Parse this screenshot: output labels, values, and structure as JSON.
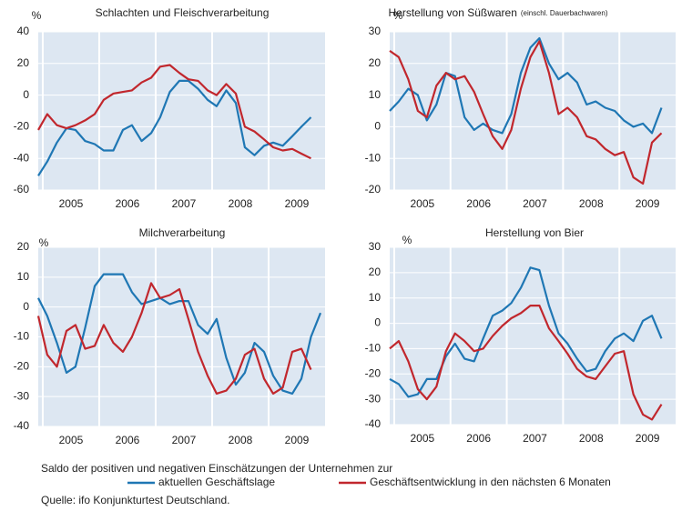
{
  "chart_data": [
    {
      "type": "line",
      "title": "Schlachten und Fleischverarbeitung",
      "y_label": "%",
      "categories": [
        "2005",
        "2006",
        "2007",
        "2008",
        "2009"
      ],
      "x": [
        2004.92,
        2005.08,
        2005.25,
        2005.42,
        2005.58,
        2005.75,
        2005.92,
        2006.08,
        2006.25,
        2006.42,
        2006.58,
        2006.75,
        2006.92,
        2007.08,
        2007.25,
        2007.42,
        2007.58,
        2007.75,
        2007.92,
        2008.08,
        2008.25,
        2008.42,
        2008.58,
        2008.75,
        2008.92,
        2009.08,
        2009.25,
        2009.42,
        2009.58,
        2009.75,
        2009.92
      ],
      "xlim": [
        2004.92,
        2010
      ],
      "ylim": [
        -60,
        40
      ],
      "yticks": [
        40,
        20,
        0,
        -20,
        -40,
        -60
      ],
      "series": [
        {
          "color": "#1f77b4",
          "values": [
            -51,
            -42,
            -30,
            -21,
            -22,
            -29,
            -31,
            -35,
            -35,
            -22,
            -19,
            -29,
            -24,
            -14,
            2,
            9,
            9,
            4,
            -3,
            -7,
            3,
            -5,
            -33,
            -38,
            -32,
            -30,
            -32,
            -26,
            -20,
            -14,
            null
          ]
        },
        {
          "color": "#c1272d",
          "values": [
            -22,
            -12,
            -19,
            -21,
            -19,
            -16,
            -12,
            -3,
            1,
            2,
            3,
            8,
            11,
            18,
            19,
            14,
            10,
            9,
            3,
            0,
            7,
            1,
            -20,
            -23,
            -28,
            -33,
            -35,
            -34,
            -37,
            -40,
            null
          ]
        }
      ]
    },
    {
      "type": "line",
      "title": "Herstellung von Süßwaren",
      "subtitle": "(einschl. Dauerbachwaren)",
      "y_label": "%",
      "categories": [
        "2005",
        "2006",
        "2007",
        "2008",
        "2009"
      ],
      "x": [
        2004.92,
        2005.08,
        2005.25,
        2005.42,
        2005.58,
        2005.75,
        2005.92,
        2006.08,
        2006.25,
        2006.42,
        2006.58,
        2006.75,
        2006.92,
        2007.08,
        2007.25,
        2007.42,
        2007.58,
        2007.75,
        2007.92,
        2008.08,
        2008.25,
        2008.42,
        2008.58,
        2008.75,
        2008.92,
        2009.08,
        2009.25,
        2009.42,
        2009.58,
        2009.75,
        2009.92
      ],
      "xlim": [
        2004.92,
        2010
      ],
      "ylim": [
        -20,
        30
      ],
      "yticks": [
        30,
        20,
        10,
        0,
        -10,
        -20
      ],
      "series": [
        {
          "color": "#1f77b4",
          "values": [
            5,
            8,
            12,
            10,
            2,
            7,
            17,
            16,
            3,
            -1,
            1,
            -1,
            -2,
            4,
            17,
            25,
            28,
            20,
            15,
            17,
            14,
            7,
            8,
            6,
            5,
            2,
            0,
            1,
            -2,
            6,
            null
          ]
        },
        {
          "color": "#c1272d",
          "values": [
            24,
            22,
            15,
            5,
            3,
            13,
            17,
            15,
            16,
            11,
            4,
            -3,
            -7,
            -1,
            12,
            22,
            27,
            17,
            4,
            6,
            3,
            -3,
            -4,
            -7,
            -9,
            -8,
            -16,
            -18,
            -5,
            -2,
            null
          ]
        }
      ]
    },
    {
      "type": "line",
      "title": "Milchverarbeitung",
      "y_label": "%",
      "categories": [
        "2005",
        "2006",
        "2007",
        "2008",
        "2009"
      ],
      "x": [
        2004.92,
        2005.08,
        2005.25,
        2005.42,
        2005.58,
        2005.75,
        2005.92,
        2006.08,
        2006.25,
        2006.42,
        2006.58,
        2006.75,
        2006.92,
        2007.08,
        2007.25,
        2007.42,
        2007.58,
        2007.75,
        2007.92,
        2008.08,
        2008.25,
        2008.42,
        2008.58,
        2008.75,
        2008.92,
        2009.08,
        2009.25,
        2009.42,
        2009.58,
        2009.75,
        2009.92
      ],
      "xlim": [
        2004.92,
        2010
      ],
      "ylim": [
        -40,
        20
      ],
      "yticks": [
        20,
        10,
        0,
        -10,
        -20,
        -30,
        -40
      ],
      "series": [
        {
          "color": "#1f77b4",
          "values": [
            3,
            -3,
            -12,
            -22,
            -20,
            -7,
            7,
            11,
            11,
            11,
            5,
            1,
            2,
            3,
            1,
            2,
            2,
            -6,
            -9,
            -4,
            -17,
            -26,
            -22,
            -12,
            -15,
            -23,
            -28,
            -29,
            -24,
            -10,
            -2
          ]
        },
        {
          "color": "#c1272d",
          "values": [
            -3,
            -16,
            -20,
            -8,
            -6,
            -14,
            -13,
            -6,
            -12,
            -15,
            -10,
            -2,
            8,
            3,
            4,
            6,
            -4,
            -15,
            -23,
            -29,
            -28,
            -24,
            -16,
            -14,
            -24,
            -29,
            -27,
            -15,
            -14,
            -21,
            null
          ]
        }
      ]
    },
    {
      "type": "line",
      "title": "Herstellung von Bier",
      "y_label": "%",
      "categories": [
        "2005",
        "2006",
        "2007",
        "2008",
        "2009"
      ],
      "x": [
        2004.92,
        2005.08,
        2005.25,
        2005.42,
        2005.58,
        2005.75,
        2005.92,
        2006.08,
        2006.25,
        2006.42,
        2006.58,
        2006.75,
        2006.92,
        2007.08,
        2007.25,
        2007.42,
        2007.58,
        2007.75,
        2007.92,
        2008.08,
        2008.25,
        2008.42,
        2008.58,
        2008.75,
        2008.92,
        2009.08,
        2009.25,
        2009.42,
        2009.58,
        2009.75,
        2009.92
      ],
      "xlim": [
        2004.92,
        2010
      ],
      "ylim": [
        -40,
        30
      ],
      "yticks": [
        30,
        20,
        10,
        0,
        -10,
        -20,
        -30,
        -40
      ],
      "series": [
        {
          "color": "#1f77b4",
          "values": [
            -22,
            -24,
            -29,
            -28,
            -22,
            -22,
            -13,
            -8,
            -14,
            -15,
            -6,
            3,
            5,
            8,
            14,
            22,
            21,
            7,
            -4,
            -8,
            -14,
            -19,
            -18,
            -11,
            -6,
            -4,
            -7,
            1,
            3,
            -6,
            null
          ]
        },
        {
          "color": "#c1272d",
          "values": [
            -10,
            -7,
            -15,
            -26,
            -30,
            -25,
            -11,
            -4,
            -7,
            -11,
            -10,
            -5,
            -1,
            2,
            4,
            7,
            7,
            -2,
            -7,
            -12,
            -18,
            -21,
            -22,
            -17,
            -12,
            -11,
            -28,
            -36,
            -38,
            -32,
            null
          ]
        }
      ]
    }
  ],
  "legend": {
    "intro": "Saldo der positiven und negativen Einschätzungen der Unternehmen zur",
    "items": [
      {
        "name": "aktuellen Geschäftslage",
        "color": "#1f77b4"
      },
      {
        "name": "Geschäftsentwicklung in den nächsten 6 Monaten",
        "color": "#c1272d"
      }
    ]
  },
  "source": "Quelle: ifo Konjunkturtest Deutschland."
}
